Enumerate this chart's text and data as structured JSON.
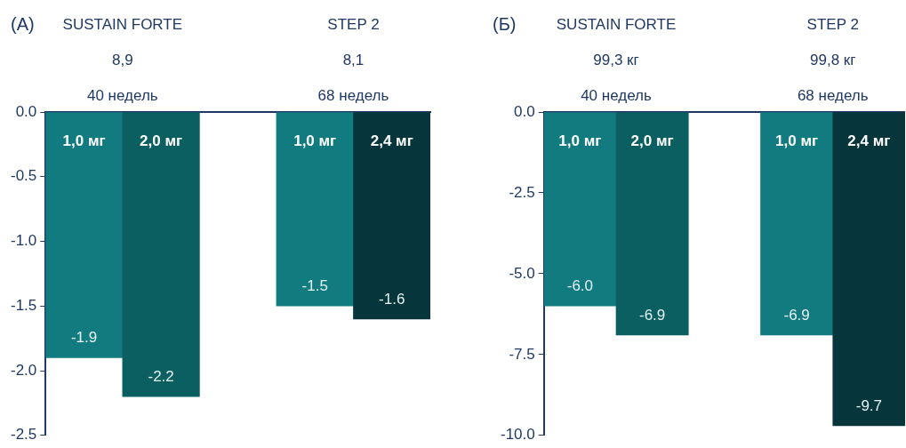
{
  "chart_data": [
    {
      "type": "bar",
      "title": "(А)",
      "annotations": [
        "SUSTAIN FORTE",
        "8,9",
        "40 недель",
        "STEP 2",
        "8,1",
        "68 недель"
      ],
      "categories": [
        "1,0 мг",
        "2,0 мг",
        null,
        "1,0 мг",
        "2,4 мг"
      ],
      "values": [
        -1.9,
        -2.2,
        null,
        -1.5,
        -1.6
      ],
      "value_labels": [
        "-1.9",
        "-2.2",
        null,
        "-1.5",
        "-1.6"
      ],
      "colors": [
        "#127b80",
        "#0b5f60",
        "#127b80",
        "#127b80",
        "#06363c"
      ],
      "ylim": [
        -2.5,
        0
      ],
      "yticks": [
        {
          "value": -2.5,
          "label": "-2.5"
        },
        {
          "value": -2,
          "label": "-2.0"
        },
        {
          "value": -1.5,
          "label": "-1.5"
        },
        {
          "value": -1,
          "label": "-1.0"
        },
        {
          "value": -0.5,
          "label": "-0.5"
        },
        {
          "value": 0,
          "label": "0.0"
        }
      ],
      "grid": false,
      "legend": false
    },
    {
      "type": "bar",
      "title": "(Б)",
      "annotations": [
        "SUSTAIN FORTE",
        "99,3 кг",
        "40 недель",
        "STEP 2",
        "99,8 кг",
        "68 недель"
      ],
      "categories": [
        "1,0 мг",
        "2,0 мг",
        null,
        "1,0 мг",
        "2,4 мг"
      ],
      "values": [
        -6.0,
        -6.9,
        null,
        -6.9,
        -9.7
      ],
      "value_labels": [
        "-6.0",
        "-6.9",
        null,
        "-6.9",
        "-9.7"
      ],
      "colors": [
        "#127b80",
        "#0b5f60",
        "#127b80",
        "#127b80",
        "#06363c"
      ],
      "ylim": [
        -10,
        0
      ],
      "yticks": [
        {
          "value": -10,
          "label": "-10.0"
        },
        {
          "value": -7.5,
          "label": "-7.5"
        },
        {
          "value": -5,
          "label": "-5.0"
        },
        {
          "value": -2.5,
          "label": "-2.5"
        },
        {
          "value": 0,
          "label": "0.0"
        }
      ],
      "grid": false,
      "legend": false
    }
  ]
}
